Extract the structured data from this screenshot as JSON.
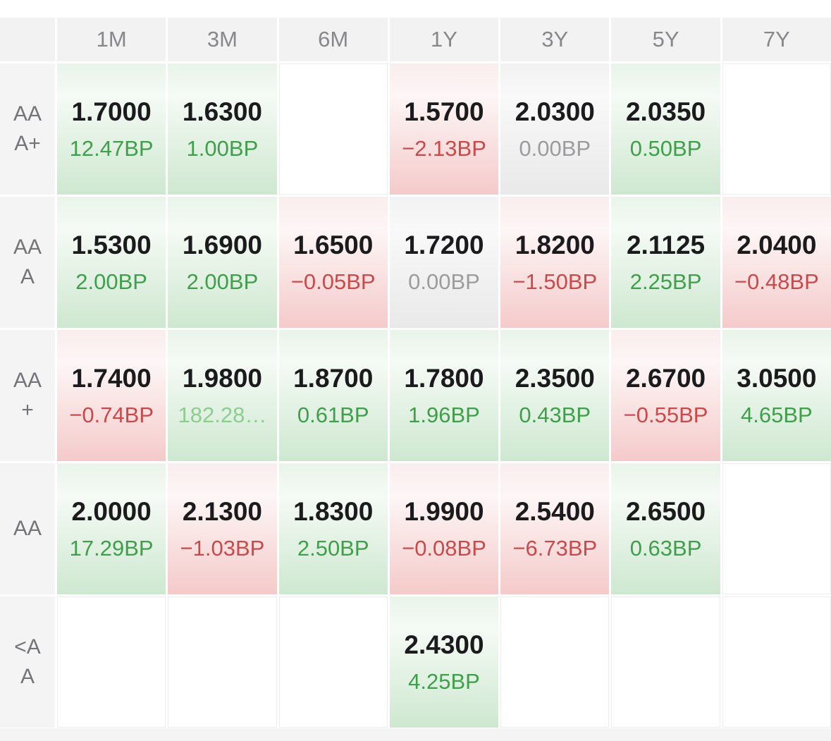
{
  "colors": {
    "header_bg": "#f2f2f3",
    "header_text": "#88888c",
    "label_bg": "#f4f4f5",
    "label_text": "#747478",
    "rate_text": "#1b1b1d",
    "up_text": "#3f9f4a",
    "up_text_muted": "#8ecd90",
    "down_text": "#c94a4a",
    "zero_text": "#9c9c9e",
    "up_gradient_bottom": "#cee8d0",
    "down_gradient_bottom": "#f5caca",
    "zero_gradient_bottom": "#e9e9ea",
    "footer_bg": "#f4f4f5"
  },
  "table": {
    "tenors": [
      "1M",
      "3M",
      "6M",
      "1Y",
      "3Y",
      "5Y",
      "7Y"
    ],
    "rows": [
      {
        "rating": "AAA+",
        "label_display": "AA\nA+",
        "cells": [
          {
            "rate": "1.7000",
            "bp": "12.47BP",
            "trend": "up"
          },
          {
            "rate": "1.6300",
            "bp": "1.00BP",
            "trend": "up"
          },
          null,
          {
            "rate": "1.5700",
            "bp": "−2.13BP",
            "trend": "down"
          },
          {
            "rate": "2.0300",
            "bp": "0.00BP",
            "trend": "zero"
          },
          {
            "rate": "2.0350",
            "bp": "0.50BP",
            "trend": "up"
          },
          null
        ]
      },
      {
        "rating": "AAA",
        "label_display": "AA\nA",
        "cells": [
          {
            "rate": "1.5300",
            "bp": "2.00BP",
            "trend": "up"
          },
          {
            "rate": "1.6900",
            "bp": "2.00BP",
            "trend": "up"
          },
          {
            "rate": "1.6500",
            "bp": "−0.05BP",
            "trend": "down"
          },
          {
            "rate": "1.7200",
            "bp": "0.00BP",
            "trend": "zero"
          },
          {
            "rate": "1.8200",
            "bp": "−1.50BP",
            "trend": "down"
          },
          {
            "rate": "2.1125",
            "bp": "2.25BP",
            "trend": "up"
          },
          {
            "rate": "2.0400",
            "bp": "−0.48BP",
            "trend": "down"
          }
        ]
      },
      {
        "rating": "AA+",
        "label_display": "AA\n+",
        "cells": [
          {
            "rate": "1.7400",
            "bp": "−0.74BP",
            "trend": "down"
          },
          {
            "rate": "1.9800",
            "bp": "182.28…",
            "trend": "up",
            "muted": true
          },
          {
            "rate": "1.8700",
            "bp": "0.61BP",
            "trend": "up"
          },
          {
            "rate": "1.7800",
            "bp": "1.96BP",
            "trend": "up"
          },
          {
            "rate": "2.3500",
            "bp": "0.43BP",
            "trend": "up"
          },
          {
            "rate": "2.6700",
            "bp": "−0.55BP",
            "trend": "down"
          },
          {
            "rate": "3.0500",
            "bp": "4.65BP",
            "trend": "up"
          }
        ]
      },
      {
        "rating": "AA",
        "label_display": "AA",
        "cells": [
          {
            "rate": "2.0000",
            "bp": "17.29BP",
            "trend": "up"
          },
          {
            "rate": "2.1300",
            "bp": "−1.03BP",
            "trend": "down"
          },
          {
            "rate": "1.8300",
            "bp": "2.50BP",
            "trend": "up"
          },
          {
            "rate": "1.9900",
            "bp": "−0.08BP",
            "trend": "down"
          },
          {
            "rate": "2.5400",
            "bp": "−6.73BP",
            "trend": "down"
          },
          {
            "rate": "2.6500",
            "bp": "0.63BP",
            "trend": "up"
          },
          null
        ]
      },
      {
        "rating": "<AA",
        "label_display": "<A\nA",
        "cells": [
          null,
          null,
          null,
          {
            "rate": "2.4300",
            "bp": "4.25BP",
            "trend": "up"
          },
          null,
          null,
          null
        ]
      }
    ]
  }
}
